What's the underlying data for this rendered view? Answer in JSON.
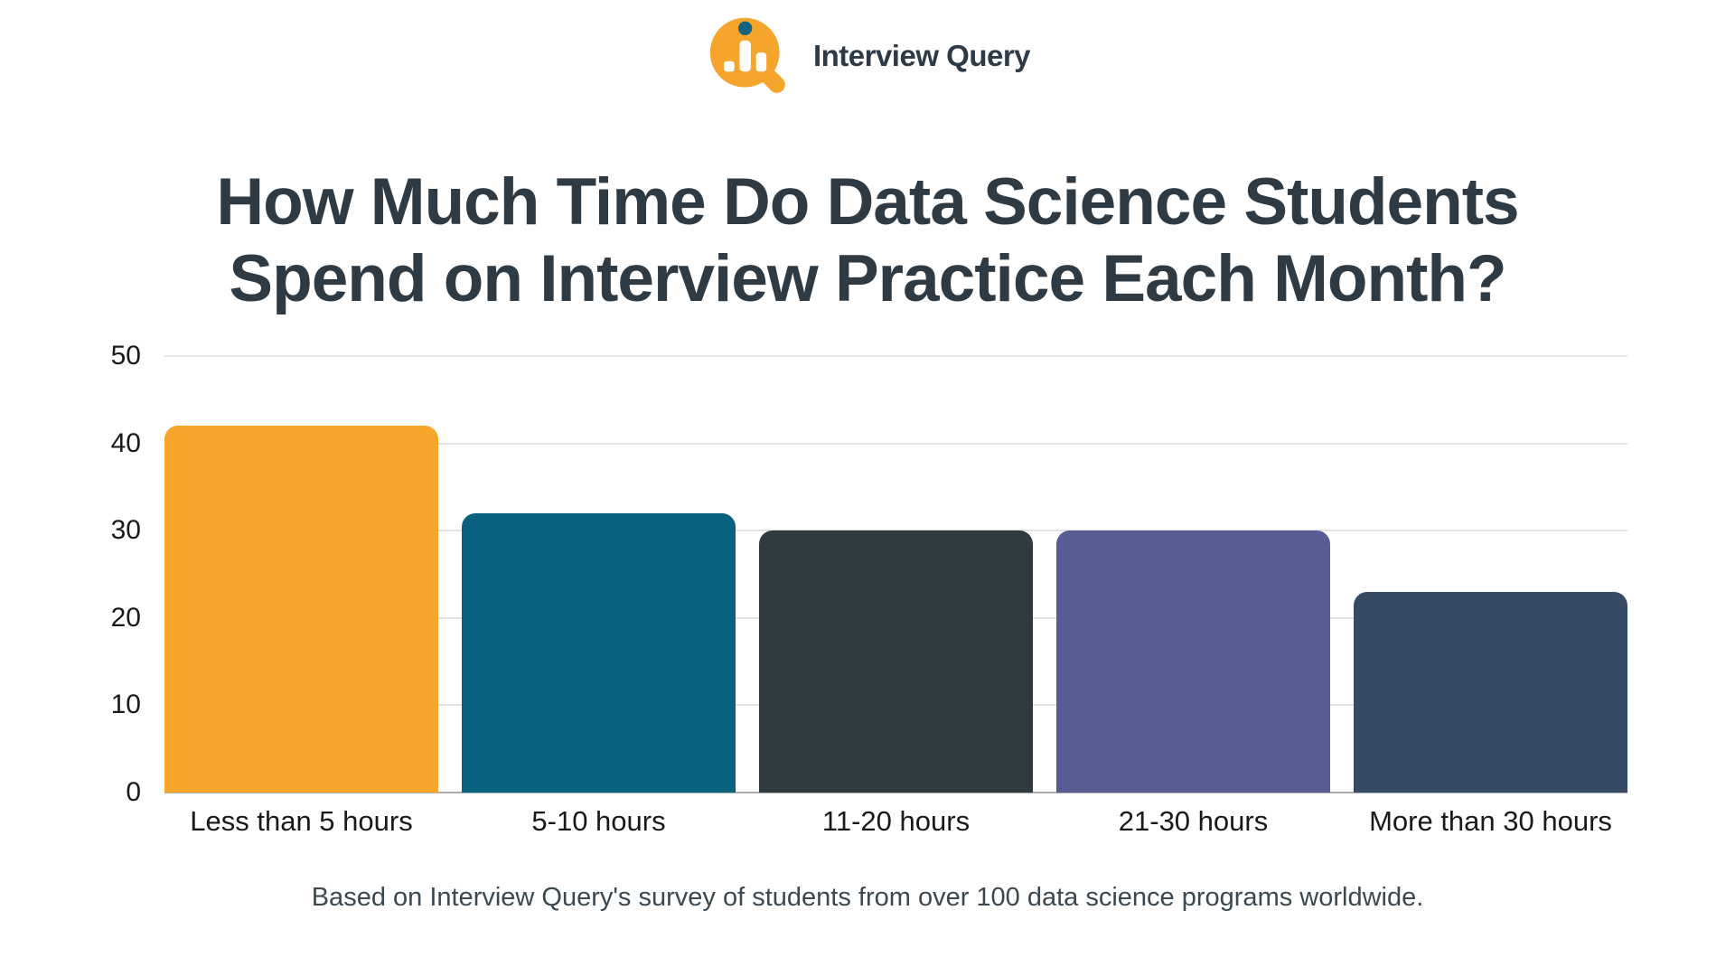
{
  "logo": {
    "text": "Interview Query",
    "icon": "magnifier-bar-chart-icon",
    "brand_orange": "#F6A52C",
    "brand_teal": "#16637E",
    "text_color": "#2E3B47"
  },
  "title": {
    "line1": "How Much Time Do Data Science Students",
    "line2": "Spend on Interview Practice Each Month?"
  },
  "footer": {
    "note": "Based on Interview Query's survey of students from over 100 data science programs worldwide."
  },
  "chart_data": {
    "type": "bar",
    "title": "How Much Time Do Data Science Students Spend on Interview Practice Each Month?",
    "categories": [
      "Less than 5 hours",
      "5-10 hours",
      "11-20 hours",
      "21-30 hours",
      "More than 30 hours"
    ],
    "values": [
      42,
      32,
      30,
      30,
      23
    ],
    "bar_colors": [
      "#F5A62B",
      "#0A617E",
      "#2F3A41",
      "#575C92",
      "#364A63"
    ],
    "xlabel": "",
    "ylabel": "",
    "ylim": [
      0,
      50
    ],
    "yticks": [
      0,
      10,
      20,
      30,
      40,
      50
    ],
    "grid": "horizontal",
    "legend": "none"
  }
}
